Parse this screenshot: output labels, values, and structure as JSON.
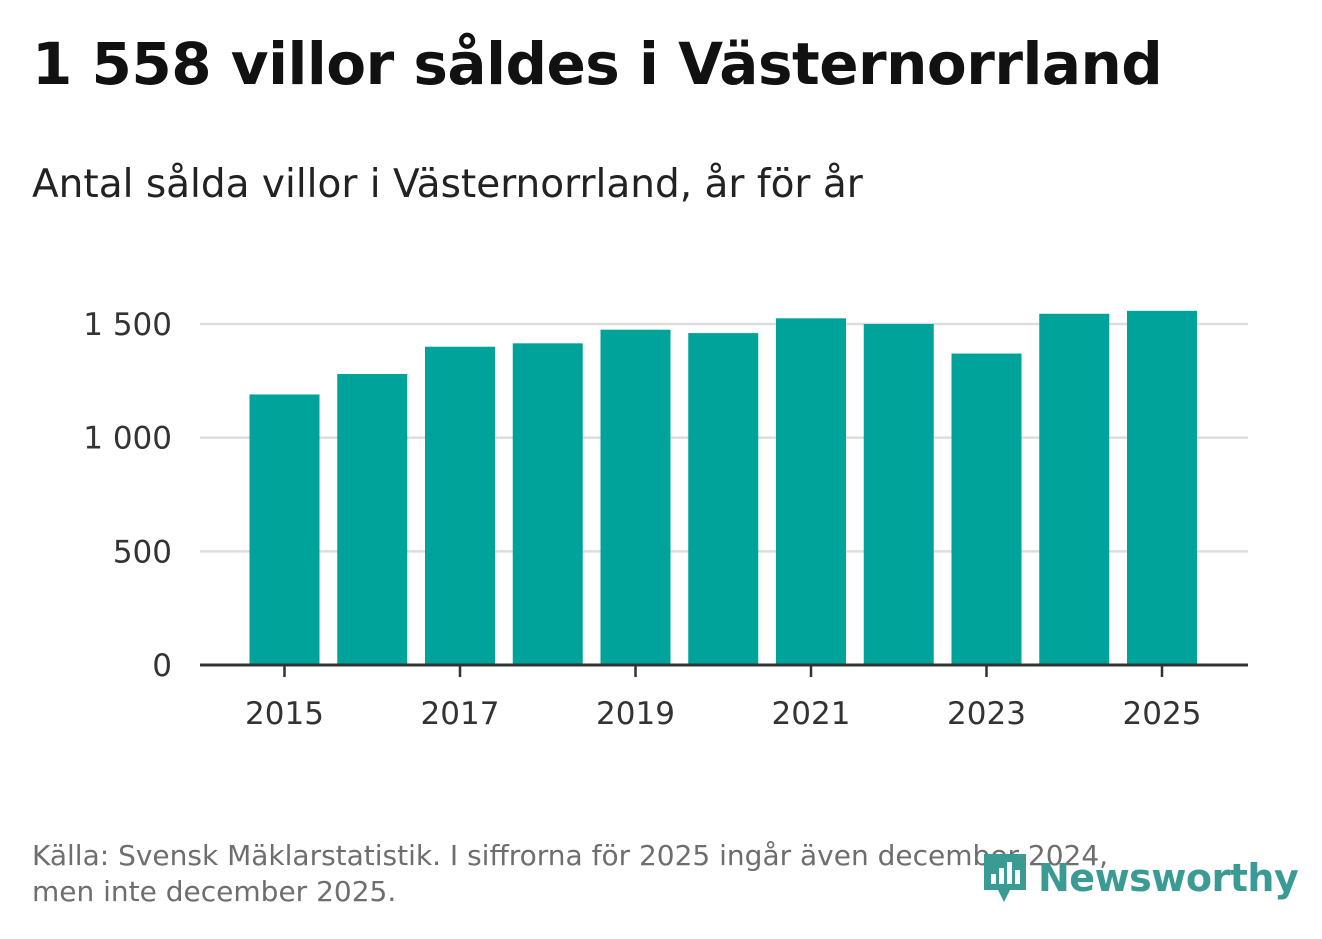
{
  "header": {
    "title": "1 558 villor såldes i Västernorrland",
    "subtitle": "Antal sålda villor i Västernorrland, år för år"
  },
  "footer": {
    "source_line1": "Källa: Svensk Mäklarstatistik. I siffrorna för 2025 ingår även december 2024,",
    "source_line2": "men inte december 2025.",
    "brand": "Newsworthy"
  },
  "colors": {
    "bar": "#00a39a",
    "grid": "#dddddd",
    "axis": "#333333",
    "brand": "#3a9b95"
  },
  "chart_data": {
    "type": "bar",
    "title": "Antal sålda villor i Västernorrland, år för år",
    "xlabel": "",
    "ylabel": "",
    "categories": [
      "2015",
      "2016",
      "2017",
      "2018",
      "2019",
      "2020",
      "2021",
      "2022",
      "2023",
      "2024",
      "2025"
    ],
    "values": [
      1190,
      1280,
      1400,
      1415,
      1475,
      1460,
      1525,
      1500,
      1370,
      1545,
      1558
    ],
    "ylim": [
      0,
      1500
    ],
    "yticks": [
      0,
      500,
      1000,
      1500
    ],
    "ytick_labels": [
      "0",
      "500",
      "1 000",
      "1 500"
    ],
    "xtick_labels": [
      "2015",
      "2017",
      "2019",
      "2021",
      "2023",
      "2025"
    ],
    "grid": true,
    "legend": "none"
  }
}
